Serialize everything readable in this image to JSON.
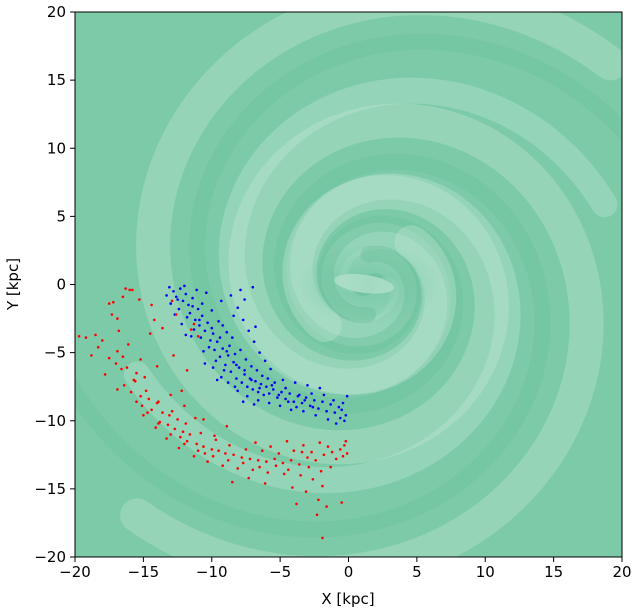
{
  "chart_data": {
    "type": "scatter",
    "title": "",
    "xlabel": "X [kpc]",
    "ylabel": "Y [kpc]",
    "xlim": [
      -20,
      20
    ],
    "ylim": [
      -20,
      20
    ],
    "xticks": [
      -20,
      -15,
      -10,
      -5,
      0,
      5,
      10,
      15,
      20
    ],
    "yticks": [
      -20,
      -15,
      -10,
      -5,
      0,
      5,
      10,
      15,
      20
    ],
    "xtick_labels": [
      "−20",
      "−15",
      "−10",
      "−5",
      "0",
      "5",
      "10",
      "15",
      "20"
    ],
    "ytick_labels": [
      "−20",
      "−15",
      "−10",
      "−5",
      "0",
      "5",
      "10",
      "15",
      "20"
    ],
    "grid": false,
    "legend": "none",
    "background": {
      "description_color": "#7dcaa8",
      "spiral_center": [
        1.5,
        0.0
      ]
    },
    "series": [
      {
        "color": "#0000ff",
        "points": [
          [
            -13.1,
            -0.2
          ],
          [
            -12.8,
            -0.5
          ],
          [
            -12.6,
            -0.9
          ],
          [
            -12.3,
            -0.3
          ],
          [
            -12.1,
            -1.2
          ],
          [
            -11.9,
            -0.7
          ],
          [
            -11.7,
            -1.5
          ],
          [
            -11.6,
            -2.1
          ],
          [
            -11.4,
            -1.0
          ],
          [
            -11.2,
            -2.6
          ],
          [
            -11.0,
            -1.8
          ],
          [
            -10.9,
            -3.0
          ],
          [
            -10.7,
            -2.3
          ],
          [
            -10.5,
            -3.4
          ],
          [
            -10.3,
            -2.8
          ],
          [
            -10.1,
            -4.1
          ],
          [
            -9.9,
            -3.6
          ],
          [
            -9.8,
            -4.8
          ],
          [
            -9.6,
            -4.2
          ],
          [
            -9.4,
            -5.3
          ],
          [
            -9.2,
            -4.7
          ],
          [
            -9.0,
            -5.9
          ],
          [
            -8.8,
            -5.2
          ],
          [
            -8.6,
            -6.4
          ],
          [
            -8.4,
            -5.7
          ],
          [
            -8.2,
            -6.9
          ],
          [
            -8.0,
            -6.1
          ],
          [
            -7.8,
            -7.2
          ],
          [
            -7.6,
            -6.6
          ],
          [
            -7.4,
            -7.5
          ],
          [
            -7.2,
            -6.9
          ],
          [
            -7.0,
            -7.7
          ],
          [
            -6.8,
            -7.1
          ],
          [
            -6.6,
            -7.9
          ],
          [
            -6.4,
            -7.3
          ],
          [
            -6.2,
            -8.1
          ],
          [
            -6.0,
            -7.5
          ],
          [
            -5.8,
            -8.0
          ],
          [
            -5.5,
            -7.7
          ],
          [
            -5.2,
            -8.3
          ],
          [
            -4.9,
            -7.9
          ],
          [
            -4.6,
            -8.4
          ],
          [
            -4.3,
            -8.0
          ],
          [
            -4.0,
            -8.6
          ],
          [
            -3.7,
            -8.2
          ],
          [
            -3.4,
            -8.7
          ],
          [
            -3.1,
            -8.3
          ],
          [
            -2.8,
            -8.9
          ],
          [
            -2.5,
            -8.5
          ],
          [
            -2.2,
            -9.1
          ],
          [
            -1.9,
            -8.6
          ],
          [
            -1.6,
            -9.3
          ],
          [
            -1.3,
            -8.8
          ],
          [
            -1.0,
            -9.4
          ],
          [
            -0.7,
            -9.0
          ],
          [
            -0.4,
            -8.7
          ],
          [
            -0.2,
            -9.6
          ],
          [
            -0.1,
            -8.2
          ],
          [
            -0.3,
            -10.0
          ],
          [
            -0.6,
            -9.8
          ],
          [
            -12.4,
            -1.8
          ],
          [
            -11.8,
            -2.4
          ],
          [
            -11.3,
            -3.3
          ],
          [
            -10.8,
            -3.9
          ],
          [
            -10.2,
            -4.6
          ],
          [
            -9.7,
            -5.6
          ],
          [
            -9.1,
            -6.3
          ],
          [
            -8.7,
            -4.5
          ],
          [
            -8.3,
            -5.1
          ],
          [
            -7.9,
            -4.8
          ],
          [
            -7.5,
            -5.5
          ],
          [
            -7.1,
            -6.0
          ],
          [
            -6.7,
            -6.3
          ],
          [
            -6.3,
            -6.7
          ],
          [
            -5.9,
            -6.9
          ],
          [
            -5.4,
            -7.2
          ],
          [
            -8.9,
            -3.5
          ],
          [
            -8.5,
            -3.9
          ],
          [
            -9.5,
            -2.7
          ],
          [
            -10.0,
            -1.9
          ],
          [
            -9.3,
            -1.2
          ],
          [
            -8.6,
            -0.8
          ],
          [
            -8.1,
            -1.7
          ],
          [
            -7.7,
            -2.6
          ],
          [
            -7.3,
            -3.4
          ],
          [
            -6.9,
            -4.2
          ],
          [
            -6.5,
            -5.0
          ],
          [
            -6.1,
            -5.6
          ],
          [
            -5.7,
            -6.2
          ],
          [
            -7.0,
            -0.2
          ],
          [
            -7.9,
            -0.4
          ],
          [
            -10.4,
            -0.6
          ],
          [
            -11.1,
            -0.4
          ],
          [
            -12.0,
            -0.1
          ],
          [
            -13.0,
            -1.4
          ],
          [
            -12.2,
            -2.9
          ],
          [
            -11.5,
            -3.8
          ],
          [
            -10.6,
            -4.9
          ],
          [
            -9.9,
            -6.1
          ],
          [
            -9.3,
            -6.8
          ],
          [
            -8.8,
            -7.2
          ],
          [
            -8.1,
            -7.8
          ],
          [
            -7.4,
            -8.2
          ],
          [
            -6.6,
            -8.5
          ],
          [
            -5.8,
            -8.7
          ],
          [
            -5.0,
            -8.9
          ],
          [
            -4.2,
            -9.2
          ],
          [
            -3.3,
            -9.3
          ],
          [
            -2.4,
            -9.6
          ],
          [
            -1.5,
            -9.9
          ],
          [
            -0.9,
            -10.2
          ],
          [
            -2.1,
            -7.6
          ],
          [
            -3.0,
            -7.4
          ],
          [
            -3.9,
            -7.2
          ],
          [
            -4.8,
            -7.0
          ],
          [
            -6.8,
            -3.1
          ],
          [
            -7.6,
            -1.1
          ],
          [
            -8.4,
            -2.3
          ],
          [
            -9.2,
            -3.0
          ],
          [
            -10.7,
            -1.4
          ],
          [
            -11.9,
            -3.7
          ],
          [
            -12.7,
            -2.2
          ],
          [
            -13.3,
            -0.8
          ],
          [
            -10.5,
            -5.8
          ],
          [
            -9.6,
            -7.0
          ],
          [
            -8.3,
            -7.5
          ],
          [
            -7.7,
            -8.6
          ],
          [
            -6.9,
            -8.8
          ],
          [
            -4.6,
            -7.6
          ],
          [
            -3.6,
            -8.1
          ],
          [
            -2.7,
            -8.0
          ],
          [
            -1.8,
            -8.1
          ],
          [
            -1.1,
            -8.5
          ],
          [
            -0.5,
            -9.2
          ],
          [
            -12.5,
            -1.1
          ],
          [
            -11.4,
            -1.6
          ],
          [
            -10.9,
            -2.6
          ],
          [
            -10.0,
            -3.2
          ],
          [
            -9.4,
            -3.9
          ],
          [
            -8.9,
            -4.9
          ],
          [
            -8.2,
            -5.9
          ],
          [
            -7.6,
            -6.3
          ],
          [
            -7.1,
            -7.0
          ],
          [
            -6.5,
            -7.6
          ],
          [
            -5.6,
            -7.4
          ],
          [
            -5.1,
            -8.1
          ],
          [
            -4.4,
            -8.6
          ],
          [
            -3.8,
            -9.0
          ],
          [
            -3.2,
            -8.5
          ],
          [
            -2.6,
            -9.0
          ]
        ]
      },
      {
        "color": "#ff0000",
        "points": [
          [
            -16.3,
            -0.3
          ],
          [
            -16.0,
            -0.4
          ],
          [
            -15.8,
            -0.4
          ],
          [
            -16.5,
            -0.9
          ],
          [
            -17.5,
            -1.4
          ],
          [
            -17.2,
            -1.3
          ],
          [
            -16.9,
            -2.5
          ],
          [
            -17.3,
            -2.2
          ],
          [
            -15.3,
            -1.1
          ],
          [
            -14.4,
            -1.5
          ],
          [
            -14.2,
            -2.6
          ],
          [
            -12.6,
            -2.2
          ],
          [
            -11.5,
            -3.3
          ],
          [
            -18.5,
            -3.7
          ],
          [
            -19.7,
            -3.8
          ],
          [
            -19.2,
            -3.9
          ],
          [
            -18.0,
            -4.1
          ],
          [
            -16.9,
            -4.9
          ],
          [
            -16.5,
            -5.3
          ],
          [
            -17.0,
            -5.8
          ],
          [
            -16.2,
            -6.1
          ],
          [
            -15.5,
            -6.5
          ],
          [
            -14.9,
            -6.8
          ],
          [
            -15.6,
            -7.1
          ],
          [
            -16.4,
            -7.4
          ],
          [
            -16.9,
            -7.7
          ],
          [
            -15.9,
            -7.9
          ],
          [
            -15.2,
            -8.2
          ],
          [
            -14.6,
            -8.4
          ],
          [
            -14.0,
            -8.7
          ],
          [
            -15.1,
            -8.9
          ],
          [
            -14.4,
            -9.2
          ],
          [
            -13.6,
            -9.4
          ],
          [
            -13.1,
            -9.6
          ],
          [
            -12.5,
            -9.9
          ],
          [
            -13.8,
            -10.1
          ],
          [
            -13.2,
            -10.3
          ],
          [
            -12.7,
            -10.6
          ],
          [
            -12.1,
            -10.8
          ],
          [
            -11.6,
            -11.0
          ],
          [
            -12.3,
            -11.2
          ],
          [
            -11.8,
            -11.5
          ],
          [
            -11.1,
            -11.7
          ],
          [
            -10.6,
            -11.9
          ],
          [
            -10.0,
            -12.1
          ],
          [
            -9.5,
            -12.2
          ],
          [
            -9.0,
            -12.4
          ],
          [
            -8.4,
            -12.5
          ],
          [
            -7.8,
            -12.7
          ],
          [
            -7.2,
            -12.8
          ],
          [
            -6.6,
            -12.9
          ],
          [
            -6.0,
            -13.0
          ],
          [
            -5.4,
            -12.8
          ],
          [
            -4.8,
            -13.1
          ],
          [
            -4.2,
            -12.9
          ],
          [
            -3.6,
            -13.2
          ],
          [
            -3.0,
            -12.7
          ],
          [
            -2.4,
            -12.9
          ],
          [
            -1.8,
            -12.5
          ],
          [
            -1.2,
            -12.3
          ],
          [
            -0.6,
            -12.1
          ],
          [
            -0.3,
            -11.8
          ],
          [
            -0.1,
            -12.4
          ],
          [
            -0.4,
            -12.6
          ],
          [
            -0.2,
            -11.5
          ],
          [
            -1.5,
            -11.9
          ],
          [
            -2.7,
            -12.3
          ],
          [
            -3.3,
            -11.8
          ],
          [
            -4.0,
            -12.2
          ],
          [
            -5.1,
            -12.4
          ],
          [
            -6.3,
            -12.2
          ],
          [
            -7.5,
            -12.1
          ],
          [
            -8.7,
            -11.8
          ],
          [
            -9.7,
            -11.4
          ],
          [
            -10.8,
            -10.9
          ],
          [
            -11.9,
            -10.2
          ],
          [
            -12.9,
            -9.3
          ],
          [
            -13.9,
            -8.6
          ],
          [
            -14.8,
            -7.8
          ],
          [
            -15.7,
            -7.0
          ],
          [
            -16.6,
            -6.2
          ],
          [
            -17.5,
            -5.4
          ],
          [
            -18.3,
            -4.6
          ],
          [
            -15.0,
            -9.6
          ],
          [
            -14.1,
            -10.5
          ],
          [
            -13.3,
            -11.3
          ],
          [
            -12.4,
            -12.0
          ],
          [
            -11.3,
            -12.6
          ],
          [
            -10.3,
            -13.0
          ],
          [
            -9.2,
            -13.3
          ],
          [
            -8.1,
            -13.5
          ],
          [
            -7.0,
            -13.6
          ],
          [
            -5.9,
            -13.8
          ],
          [
            -4.7,
            -13.9
          ],
          [
            -3.5,
            -14.0
          ],
          [
            -2.6,
            -14.3
          ],
          [
            -1.9,
            -14.8
          ],
          [
            -4.1,
            -14.9
          ],
          [
            -3.1,
            -15.2
          ],
          [
            -2.2,
            -15.8
          ],
          [
            -1.6,
            -16.3
          ],
          [
            -0.5,
            -16.0
          ],
          [
            -3.8,
            -16.1
          ],
          [
            -2.3,
            -16.9
          ],
          [
            -1.9,
            -18.6
          ],
          [
            -6.1,
            -14.6
          ],
          [
            -7.3,
            -14.2
          ],
          [
            -8.5,
            -14.5
          ],
          [
            -10.5,
            -12.4
          ],
          [
            -9.8,
            -11.1
          ],
          [
            -8.9,
            -10.4
          ],
          [
            -11.2,
            -9.8
          ],
          [
            -12.0,
            -8.9
          ],
          [
            -10.6,
            -9.9
          ],
          [
            -13.0,
            -8.1
          ],
          [
            -12.2,
            -7.8
          ],
          [
            -11.8,
            -6.3
          ],
          [
            -12.8,
            -5.2
          ],
          [
            -13.6,
            -3.2
          ],
          [
            -14.5,
            -3.6
          ],
          [
            -14.0,
            -6.0
          ],
          [
            -15.2,
            -5.5
          ],
          [
            -16.1,
            -4.4
          ],
          [
            -16.8,
            -3.4
          ],
          [
            -18.8,
            -5.2
          ],
          [
            -17.8,
            -6.6
          ],
          [
            -12.9,
            -1.2
          ],
          [
            -11.3,
            -2.9
          ],
          [
            -11.0,
            -3.8
          ],
          [
            -6.8,
            -11.6
          ],
          [
            -5.7,
            -11.9
          ],
          [
            -4.5,
            -11.5
          ],
          [
            -3.4,
            -12.3
          ],
          [
            -2.1,
            -11.6
          ],
          [
            -0.9,
            -12.8
          ],
          [
            -1.3,
            -13.4
          ],
          [
            -2.0,
            -13.7
          ],
          [
            -2.9,
            -13.4
          ],
          [
            -4.4,
            -13.6
          ],
          [
            -5.3,
            -13.3
          ],
          [
            -6.5,
            -13.4
          ],
          [
            -7.7,
            -13.1
          ],
          [
            -8.8,
            -12.9
          ],
          [
            -9.9,
            -12.6
          ],
          [
            -11.0,
            -12.2
          ],
          [
            -12.0,
            -11.7
          ],
          [
            -13.0,
            -11.0
          ],
          [
            -13.9,
            -10.2
          ],
          [
            -14.7,
            -9.4
          ],
          [
            -15.5,
            -8.6
          ]
        ]
      }
    ]
  }
}
